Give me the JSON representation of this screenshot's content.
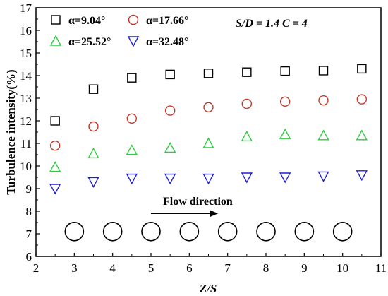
{
  "chart_data": {
    "type": "scatter",
    "xlabel": "Z/S",
    "ylabel": "Turbulence intensity(%)",
    "xlim": [
      2,
      11
    ],
    "ylim": [
      6,
      17
    ],
    "xticks": [
      "2",
      "3",
      "4",
      "5",
      "6",
      "7",
      "8",
      "9",
      "10",
      "11"
    ],
    "yticks": [
      "6",
      "7",
      "8",
      "9",
      "10",
      "11",
      "12",
      "13",
      "14",
      "15",
      "16",
      "17"
    ],
    "x": [
      2.5,
      3.5,
      4.5,
      5.5,
      6.5,
      7.5,
      8.5,
      9.5,
      10.5
    ],
    "series": [
      {
        "name": "α=9.04°",
        "marker": "square",
        "color": "#000000",
        "values": [
          12.0,
          13.4,
          13.9,
          14.05,
          14.1,
          14.15,
          14.2,
          14.22,
          14.3
        ]
      },
      {
        "name": "α=17.66°",
        "marker": "circle",
        "color": "#c0392b",
        "values": [
          10.9,
          11.75,
          12.1,
          12.45,
          12.6,
          12.75,
          12.85,
          12.9,
          12.95
        ]
      },
      {
        "name": "α=25.52°",
        "marker": "triangle-up",
        "color": "#2ecc40",
        "values": [
          9.95,
          10.55,
          10.7,
          10.8,
          11.0,
          11.3,
          11.4,
          11.35,
          11.35
        ]
      },
      {
        "name": "α=32.48°",
        "marker": "triangle-down",
        "color": "#1f1fcf",
        "values": [
          9.0,
          9.3,
          9.45,
          9.45,
          9.45,
          9.5,
          9.5,
          9.55,
          9.6
        ]
      }
    ],
    "condition_label": "S/D = 1.4 C = 4",
    "annotation": "Flow direction",
    "arrow_from": [
      5.0,
      7.9
    ],
    "arrow_to": [
      6.75,
      7.9
    ],
    "cylinder_x": [
      3.0,
      4.0,
      5.0,
      6.0,
      7.0,
      8.0,
      9.0,
      10.0
    ],
    "cylinder_y": 7.1,
    "grid": false,
    "legend_position": "top-left"
  }
}
